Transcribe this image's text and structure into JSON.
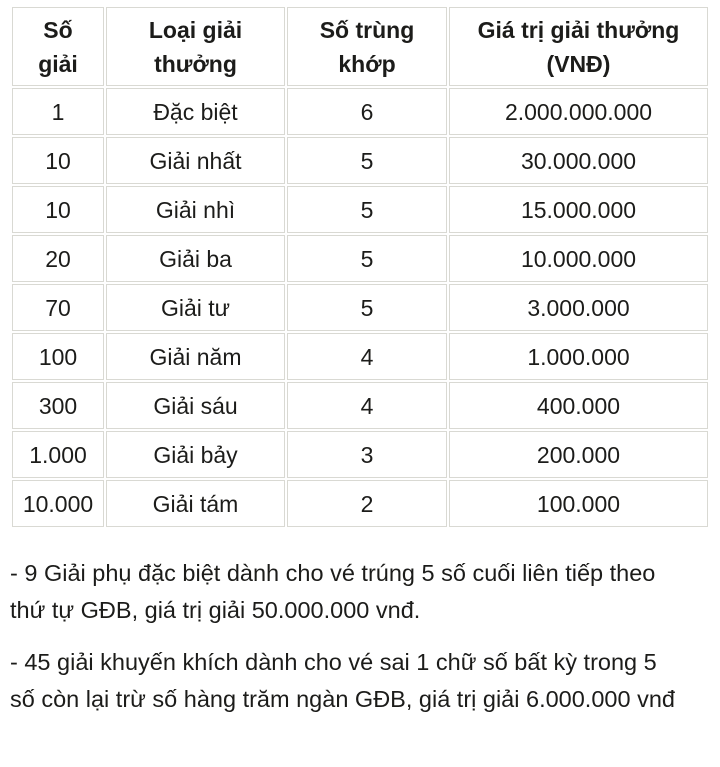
{
  "table": {
    "headers": [
      "Số giải",
      "Loại giải thưởng",
      "Số trùng khớp",
      "Giá trị giải thưởng (VNĐ)"
    ],
    "rows": [
      [
        "1",
        "Đặc biệt",
        "6",
        "2.000.000.000"
      ],
      [
        "10",
        "Giải nhất",
        "5",
        "30.000.000"
      ],
      [
        "10",
        "Giải nhì",
        "5",
        "15.000.000"
      ],
      [
        "20",
        "Giải ba",
        "5",
        "10.000.000"
      ],
      [
        "70",
        "Giải tư",
        "5",
        "3.000.000"
      ],
      [
        "100",
        "Giải năm",
        "4",
        "1.000.000"
      ],
      [
        "300",
        "Giải sáu",
        "4",
        "400.000"
      ],
      [
        "1.000",
        "Giải bảy",
        "3",
        "200.000"
      ],
      [
        "10.000",
        "Giải tám",
        "2",
        "100.000"
      ]
    ]
  },
  "notes": [
    "- 9 Giải phụ đặc biệt dành cho vé trúng 5 số cuối liên tiếp theo\nthứ tự GĐB, giá trị giải 50.000.000 vnđ.",
    "- 45 giải khuyến khích dành cho vé sai 1 chữ số bất kỳ trong 5\nsố còn lại trừ số hàng trăm ngàn GĐB, giá trị giải 6.000.000 vnđ"
  ],
  "colors": {
    "border": "#d9d9d3",
    "text": "#1c1c1a",
    "background": "#ffffff"
  }
}
